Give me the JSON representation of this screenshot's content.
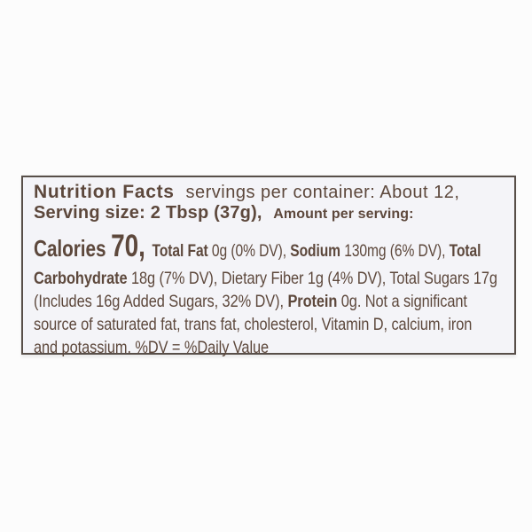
{
  "colors": {
    "ink": "#5d483c",
    "box_background": "#f4f4f8",
    "box_border": "#584f49",
    "page_background": "#fcfcfc"
  },
  "label": {
    "header": {
      "title": "Nutrition Facts",
      "servings_per_container": "servings per container: About 12,",
      "serving_size": "Serving size: 2 Tbsp (37g),",
      "amount_per_serving": "Amount per serving:"
    },
    "body_lines": [
      [
        {
          "style": "calories-label",
          "text": "Calories "
        },
        {
          "style": "calories-value",
          "text": "70, "
        },
        {
          "style": "bold",
          "text": "Total Fat "
        },
        {
          "style": "reg",
          "text": "0g (0% DV), "
        },
        {
          "style": "bold",
          "text": "Sodium "
        },
        {
          "style": "reg",
          "text": "130mg (6% DV), "
        },
        {
          "style": "bold",
          "text": "Total"
        }
      ],
      [
        {
          "style": "bold",
          "text": "Carbohydrate "
        },
        {
          "style": "reg",
          "text": "18g (7% DV), Dietary Fiber 1g (4% DV), Total Sugars 17g"
        }
      ],
      [
        {
          "style": "reg",
          "text": "(Includes 16g Added Sugars, 32% DV), "
        },
        {
          "style": "bold",
          "text": "Protein "
        },
        {
          "style": "reg",
          "text": "0g. Not a significant"
        }
      ],
      [
        {
          "style": "reg",
          "text": "source of saturated fat, trans fat, cholesterol, Vitamin D, calcium, iron"
        }
      ],
      [
        {
          "style": "reg",
          "text": "and potassium. %DV = %Daily Value"
        }
      ]
    ]
  },
  "facts": {
    "servings_per_container": "About 12",
    "serving_size": "2 Tbsp (37g)",
    "calories": "70",
    "total_fat": "0g (0% DV)",
    "sodium": "130mg (6% DV)",
    "total_carbohydrate": "18g (7% DV)",
    "dietary_fiber": "1g (4% DV)",
    "total_sugars": "17g",
    "added_sugars": "16g (32% DV)",
    "protein": "0g"
  }
}
